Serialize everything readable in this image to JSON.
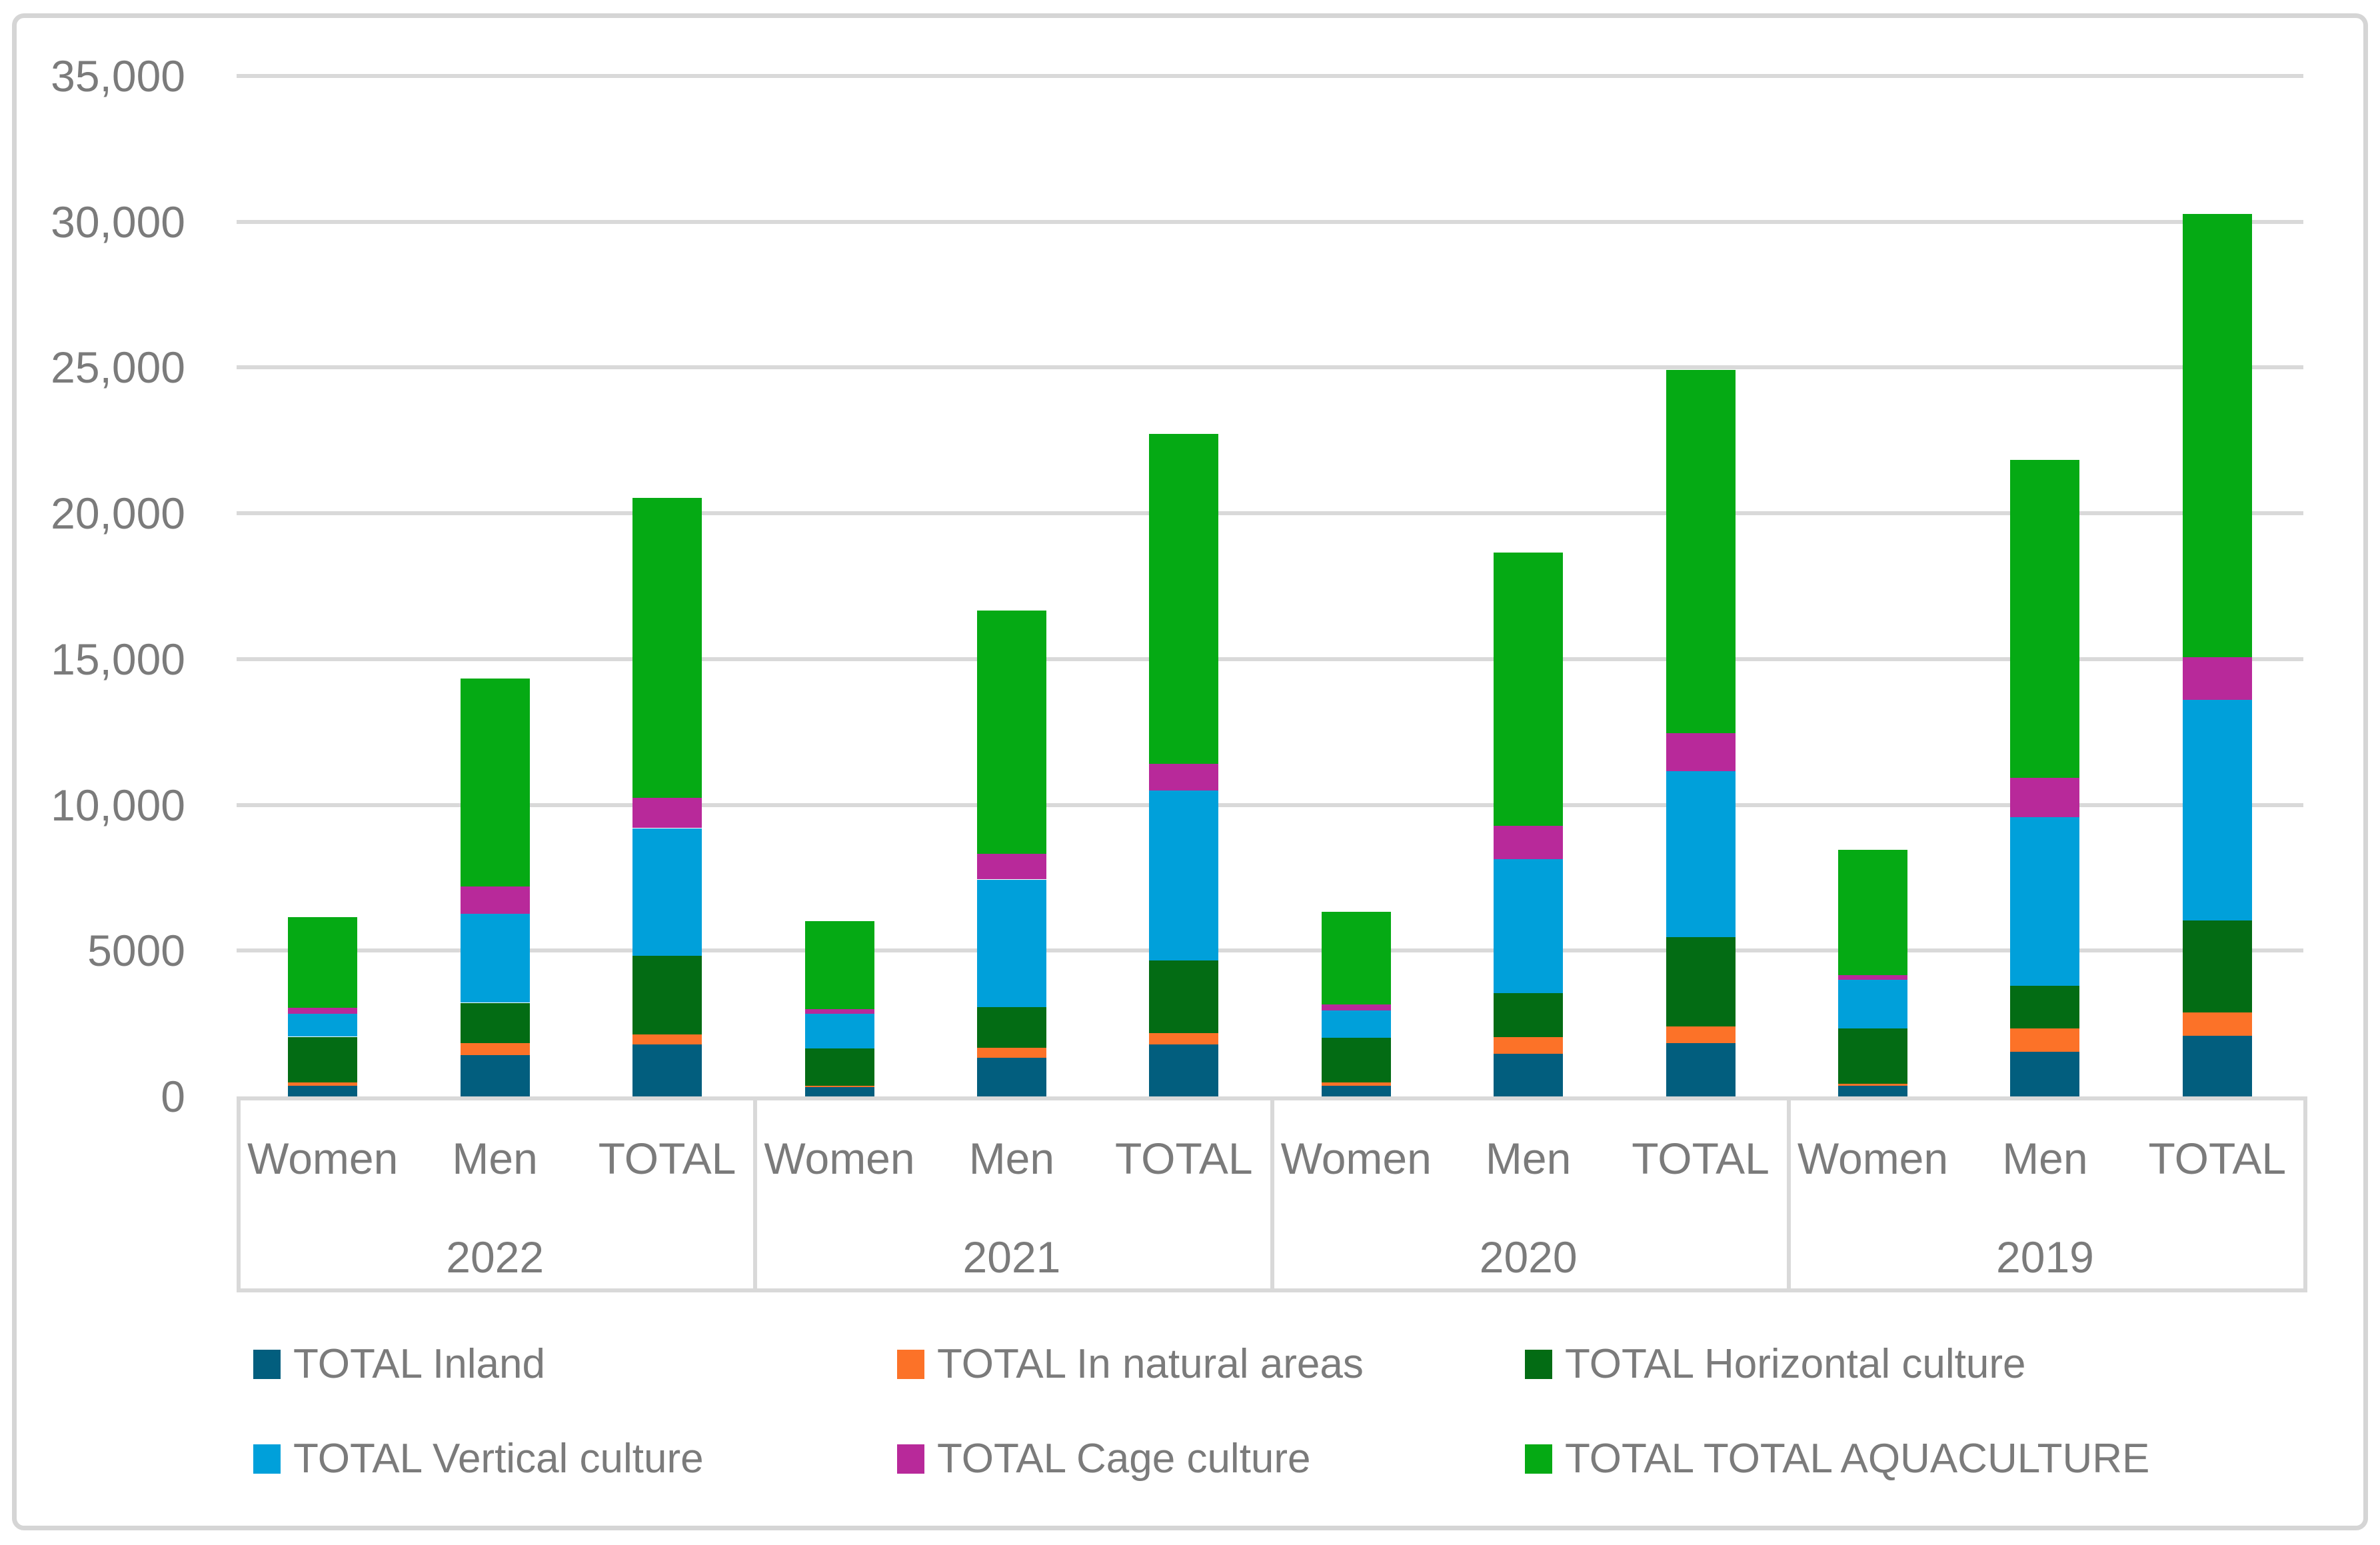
{
  "chart_data": {
    "type": "bar",
    "stacked": true,
    "orientation": "vertical",
    "grid": true,
    "legend_position": "bottom",
    "title": "",
    "ylim": [
      0,
      35000
    ],
    "ytick_step": 5000,
    "ytick_labels": [
      "0",
      "5000",
      "10,000",
      "15,000",
      "20,000",
      "25,000",
      "30,000",
      "35,000"
    ],
    "bar_labels": [
      "Women",
      "Men",
      "TOTAL"
    ],
    "year_groups": [
      "2022",
      "2021",
      "2020",
      "2019"
    ],
    "categories": [
      "2022 Women",
      "2022 Men",
      "2022 TOTAL",
      "2021 Women",
      "2021 Men",
      "2021 TOTAL",
      "2020 Women",
      "2020 Men",
      "2020 TOTAL",
      "2019 Women",
      "2019 Men",
      "2019 TOTAL"
    ],
    "series": [
      {
        "name": "TOTAL Inland",
        "color": "#025E7E",
        "values": [
          370,
          1420,
          1790,
          330,
          1330,
          1790,
          370,
          1455,
          1825,
          365,
          1540,
          2075
        ]
      },
      {
        "name": "TOTAL In natural areas",
        "color": "#FC7228",
        "values": [
          120,
          400,
          335,
          35,
          330,
          385,
          115,
          585,
          585,
          65,
          795,
          815
        ]
      },
      {
        "name": "TOTAL Horizontal culture",
        "color": "#036C14",
        "values": [
          1555,
          1390,
          2710,
          1290,
          1415,
          2490,
          1520,
          1505,
          3060,
          1905,
          1455,
          3150
        ]
      },
      {
        "name": "TOTAL Vertical culture",
        "color": "#00A0DA",
        "values": [
          785,
          3045,
          4365,
          1190,
          4365,
          5820,
          955,
          4600,
          5685,
          1670,
          5780,
          7555
        ]
      },
      {
        "name": "TOTAL Cage culture",
        "color": "#B8299A",
        "values": [
          215,
          935,
          1035,
          150,
          870,
          920,
          200,
          1135,
          1305,
          150,
          1350,
          1480
        ]
      },
      {
        "name": "TOTAL TOTAL AQUACULTURE",
        "color": "#05AA14",
        "values": [
          3095,
          7140,
          10285,
          3010,
          8360,
          11320,
          3180,
          9365,
          12460,
          4300,
          10920,
          15200
        ]
      }
    ],
    "grid_color": "#D9D9D9",
    "axis_box_color": "#D9D9D9",
    "text_color": "#7B7B7B",
    "chart_border_color": "#D5D5D5",
    "background": "#FFFFFF"
  }
}
